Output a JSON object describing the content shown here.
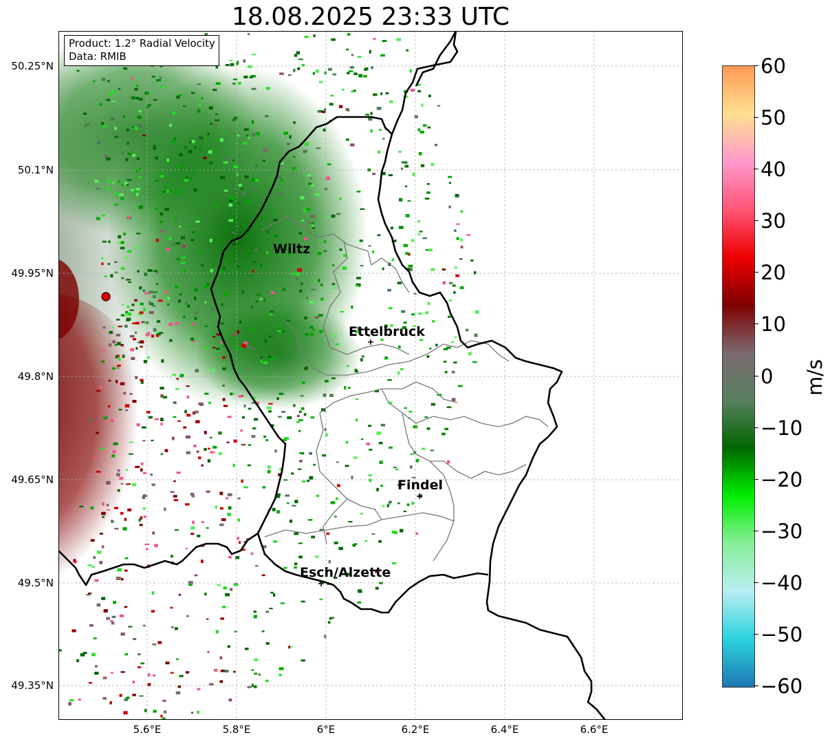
{
  "title": "18.08.2025 23:33 UTC",
  "info": {
    "product": "Product: 1.2° Radial Velocity",
    "data": "Data: RMIB"
  },
  "map": {
    "lat_labels": [
      "50.25°N",
      "50.1°N",
      "49.95°N",
      "49.8°N",
      "49.65°N",
      "49.5°N",
      "49.35°N"
    ],
    "lon_labels": [
      "5.6°E",
      "5.8°E",
      "6°E",
      "6.2°E",
      "6.4°E",
      "6.6°E"
    ],
    "cities": [
      {
        "name": "Wiltz"
      },
      {
        "name": "Ettelbruck"
      },
      {
        "name": "Findel"
      },
      {
        "name": "Esch/Alzette"
      }
    ],
    "radar_site_color": "#e00000",
    "gridlines": true
  },
  "colorbar": {
    "label": "m/s",
    "ticks": [
      "60",
      "50",
      "40",
      "30",
      "20",
      "10",
      "0",
      "−10",
      "−20",
      "−30",
      "−40",
      "−50",
      "−60"
    ],
    "range": [
      -60,
      60
    ],
    "colors": [
      "#1f77b4",
      "#2bd3dd",
      "#b9eef2",
      "#88ee99",
      "#00ee00",
      "#006600",
      "#5a8060",
      "#7a6a70",
      "#800000",
      "#ee0000",
      "#ff5577",
      "#ff99cc",
      "#ffe090",
      "#ff9955"
    ]
  }
}
